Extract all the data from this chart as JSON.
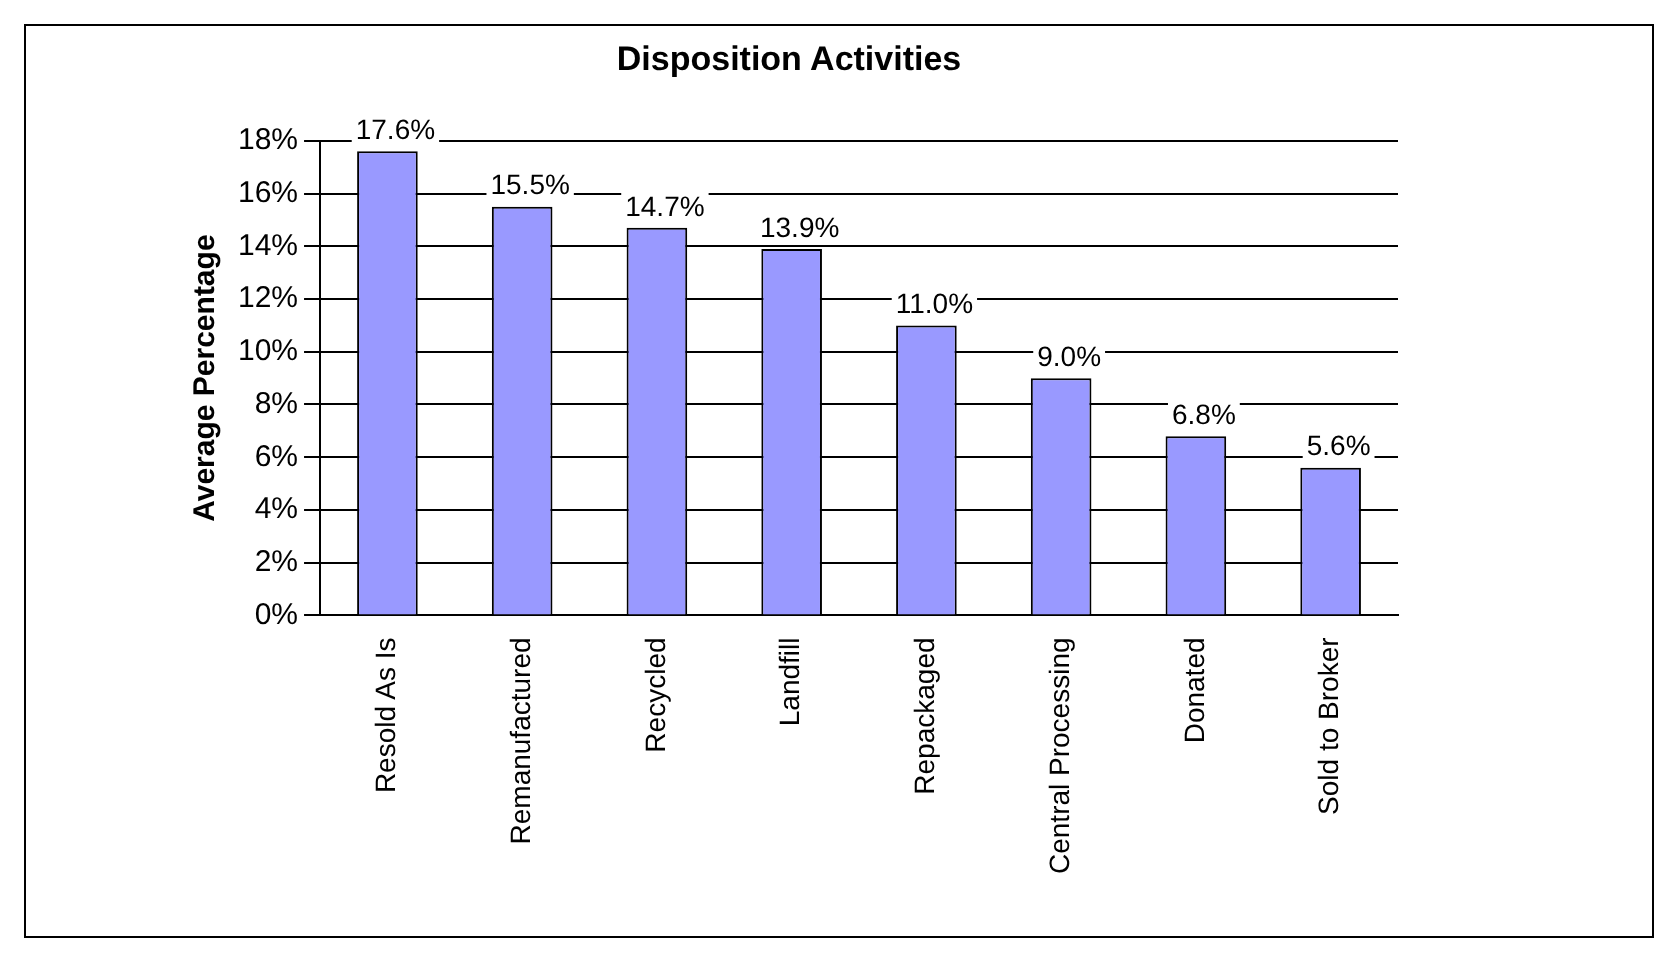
{
  "chart_data": {
    "type": "bar",
    "title": "Disposition Activities",
    "ylabel": "Average Percentage",
    "categories": [
      "Resold As Is",
      "Remanufactured",
      "Recycled",
      "Landfill",
      "Repackaged",
      "Central Processing",
      "Donated",
      "Sold to Broker"
    ],
    "values": [
      17.6,
      15.5,
      14.7,
      13.9,
      11.0,
      9.0,
      6.8,
      5.6
    ],
    "value_labels": [
      "17.6%",
      "15.5%",
      "14.7%",
      "13.9%",
      "11.0%",
      "9.0%",
      "6.8%",
      "5.6%"
    ],
    "color": "#9999ff",
    "ylim": [
      0,
      18
    ],
    "yticks": [
      {
        "value": 0,
        "label": "0%"
      },
      {
        "value": 2,
        "label": "2%"
      },
      {
        "value": 4,
        "label": "4%"
      },
      {
        "value": 6,
        "label": "6%"
      },
      {
        "value": 8,
        "label": "8%"
      },
      {
        "value": 10,
        "label": "10%"
      },
      {
        "value": 12,
        "label": "12%"
      },
      {
        "value": 14,
        "label": "14%"
      },
      {
        "value": 16,
        "label": "16%"
      },
      {
        "value": 18,
        "label": "18%"
      }
    ],
    "grid": "y",
    "legend": false
  }
}
